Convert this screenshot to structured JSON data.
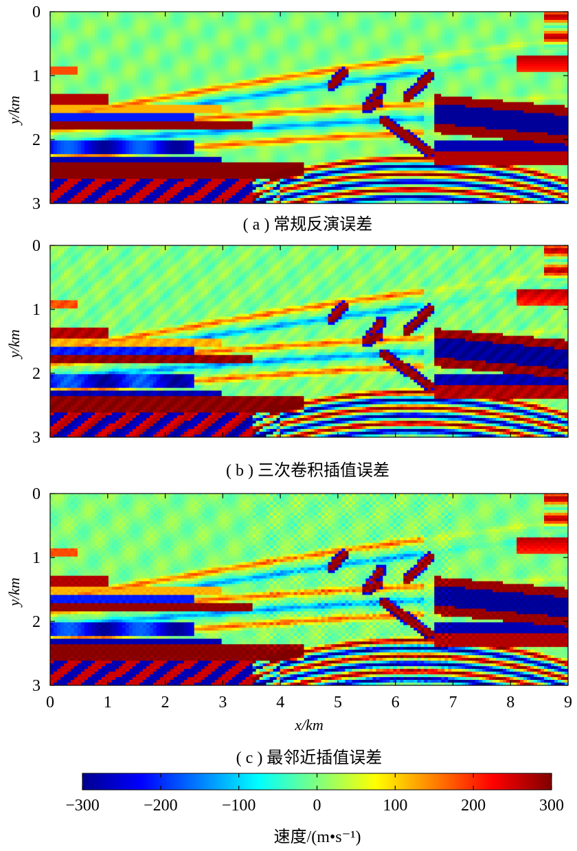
{
  "chart_data": [
    {
      "type": "heatmap",
      "caption": "( a ) 常规反演误差",
      "xlabel": "",
      "ylabel": "y/km",
      "xlim": [
        0,
        9
      ],
      "ylim": [
        3,
        0
      ],
      "yticks": [
        "0",
        "1",
        "2",
        "3"
      ],
      "xticks": [],
      "variant": "a"
    },
    {
      "type": "heatmap",
      "caption": "( b ) 三次卷积插值误差",
      "xlabel": "",
      "ylabel": "y/km",
      "xlim": [
        0,
        9
      ],
      "ylim": [
        3,
        0
      ],
      "yticks": [
        "0",
        "1",
        "2",
        "3"
      ],
      "xticks": [],
      "variant": "b"
    },
    {
      "type": "heatmap",
      "caption": "( c ) 最邻近插值误差",
      "xlabel": "x/km",
      "ylabel": "y/km",
      "xlim": [
        0,
        9
      ],
      "ylim": [
        3,
        0
      ],
      "yticks": [
        "0",
        "1",
        "2",
        "3"
      ],
      "xticks": [
        "0",
        "1",
        "2",
        "3",
        "4",
        "5",
        "6",
        "7",
        "8",
        "9"
      ],
      "variant": "c"
    }
  ],
  "colorbar": {
    "label": "速度/(m•s⁻¹)",
    "range": [
      -300,
      300
    ],
    "ticks": [
      "−300",
      "−200",
      "−100",
      "0",
      "100",
      "200",
      "300"
    ],
    "colormap": "jet",
    "colors": [
      "#00008f",
      "#0000ff",
      "#00ffff",
      "#ffff00",
      "#ff0000",
      "#800000"
    ]
  }
}
